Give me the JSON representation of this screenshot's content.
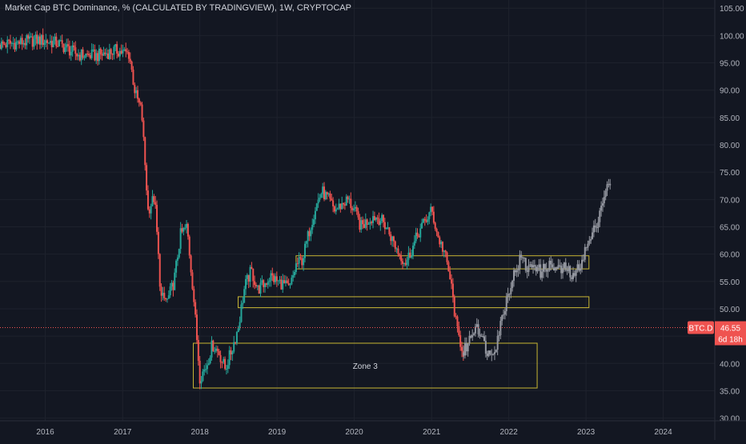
{
  "chart_data": {
    "type": "candlestick",
    "title": "Market Cap BTC Dominance, % (CALCULATED BY TRADINGVIEW), 1W, CRYPTOCAP",
    "xlabel": "",
    "ylabel": "",
    "grid": true,
    "xlim": [
      "2015-06-01",
      "2024-09-01"
    ],
    "ylim": [
      29.5,
      106.5
    ],
    "x_ticks": [
      "2016",
      "2017",
      "2018",
      "2019",
      "2020",
      "2021",
      "2022",
      "2023",
      "2024"
    ],
    "y_ticks": [
      "30.00",
      "35.00",
      "40.00",
      "45.00",
      "50.00",
      "55.00",
      "60.00",
      "65.00",
      "70.00",
      "75.00",
      "80.00",
      "85.00",
      "90.00",
      "95.00",
      "100.00",
      "105.00"
    ],
    "series": [
      {
        "name": "historical",
        "points": [
          [
            "2015-06-01",
            98.3
          ],
          [
            "2015-09-01",
            98.7
          ],
          [
            "2015-12-01",
            99.2
          ],
          [
            "2016-03-01",
            98.6
          ],
          [
            "2016-06-01",
            96.5
          ],
          [
            "2016-09-01",
            96.3
          ],
          [
            "2016-12-01",
            97.3
          ],
          [
            "2017-02-01",
            96.6
          ],
          [
            "2017-03-01",
            89.5
          ],
          [
            "2017-04-01",
            86.0
          ],
          [
            "2017-05-01",
            68.0
          ],
          [
            "2017-06-01",
            70.5
          ],
          [
            "2017-07-01",
            52.0
          ],
          [
            "2017-08-01",
            51.5
          ],
          [
            "2017-09-01",
            55.0
          ],
          [
            "2017-10-01",
            63.5
          ],
          [
            "2017-11-01",
            65.0
          ],
          [
            "2017-12-01",
            53.0
          ],
          [
            "2018-01-01",
            37.5
          ],
          [
            "2018-02-01",
            39.5
          ],
          [
            "2018-03-01",
            43.5
          ],
          [
            "2018-04-01",
            42.0
          ],
          [
            "2018-05-01",
            39.0
          ],
          [
            "2018-06-01",
            42.5
          ],
          [
            "2018-07-01",
            46.5
          ],
          [
            "2018-08-01",
            54.0
          ],
          [
            "2018-09-01",
            57.0
          ],
          [
            "2018-10-01",
            53.5
          ],
          [
            "2018-11-01",
            54.5
          ],
          [
            "2018-12-01",
            56.0
          ],
          [
            "2019-01-01",
            55.0
          ],
          [
            "2019-02-01",
            54.5
          ],
          [
            "2019-03-01",
            53.5
          ],
          [
            "2019-04-01",
            58.0
          ],
          [
            "2019-05-01",
            59.0
          ],
          [
            "2019-06-01",
            64.0
          ],
          [
            "2019-07-01",
            68.5
          ],
          [
            "2019-08-01",
            71.5
          ],
          [
            "2019-09-01",
            70.0
          ],
          [
            "2019-10-01",
            68.0
          ],
          [
            "2019-11-01",
            69.0
          ],
          [
            "2019-12-01",
            70.0
          ],
          [
            "2020-01-01",
            68.0
          ],
          [
            "2020-02-01",
            65.0
          ],
          [
            "2020-03-01",
            66.0
          ],
          [
            "2020-04-01",
            67.0
          ],
          [
            "2020-05-01",
            66.5
          ],
          [
            "2020-06-01",
            65.0
          ],
          [
            "2020-07-01",
            62.5
          ],
          [
            "2020-08-01",
            60.0
          ],
          [
            "2020-09-01",
            58.5
          ],
          [
            "2020-10-01",
            61.0
          ],
          [
            "2020-11-01",
            64.0
          ],
          [
            "2020-12-01",
            66.0
          ],
          [
            "2021-01-01",
            68.0
          ],
          [
            "2021-02-01",
            63.0
          ],
          [
            "2021-03-01",
            60.5
          ],
          [
            "2021-04-01",
            55.0
          ],
          [
            "2021-05-01",
            46.0
          ],
          [
            "2021-06-01",
            42.0
          ]
        ]
      },
      {
        "name": "projection",
        "points": [
          [
            "2021-06-01",
            42.0
          ],
          [
            "2021-07-01",
            44.5
          ],
          [
            "2021-08-01",
            47.5
          ],
          [
            "2021-09-01",
            44.0
          ],
          [
            "2021-10-01",
            41.5
          ],
          [
            "2021-11-01",
            43.5
          ],
          [
            "2021-12-01",
            48.5
          ],
          [
            "2022-01-01",
            53.5
          ],
          [
            "2022-02-01",
            57.0
          ],
          [
            "2022-03-01",
            59.5
          ],
          [
            "2022-04-01",
            57.0
          ],
          [
            "2022-05-01",
            58.5
          ],
          [
            "2022-06-01",
            56.5
          ],
          [
            "2022-07-01",
            58.0
          ],
          [
            "2022-08-01",
            57.5
          ],
          [
            "2022-09-01",
            57.0
          ],
          [
            "2022-10-01",
            57.5
          ],
          [
            "2022-11-01",
            55.5
          ],
          [
            "2022-12-01",
            58.0
          ],
          [
            "2023-01-01",
            61.0
          ],
          [
            "2023-02-01",
            63.5
          ],
          [
            "2023-03-01",
            67.0
          ],
          [
            "2023-04-01",
            71.5
          ],
          [
            "2023-05-01",
            73.0
          ]
        ]
      }
    ],
    "zones": [
      {
        "label": "",
        "x0": "2019-04-01",
        "x1": "2023-01-15",
        "y0": 57.3,
        "y1": 59.7
      },
      {
        "label": "",
        "x0": "2018-07-01",
        "x1": "2023-01-15",
        "y0": 50.2,
        "y1": 52.2
      },
      {
        "label": "Zone 3",
        "x0": "2017-12-01",
        "x1": "2022-05-15",
        "y0": 35.5,
        "y1": 43.7
      }
    ],
    "last_value": {
      "symbol": "BTC.D",
      "value": 46.55,
      "value_label": "46.55",
      "countdown": "6d 18h"
    },
    "colors": {
      "background": "#131722",
      "grid": "#1e222d",
      "up": "#26a69a",
      "down": "#ef5350",
      "projection": "#9598a1",
      "zone": "#c8b634",
      "price_line": "#ef5350",
      "text": "#d1d4dc",
      "axis_text": "#b2b5be"
    }
  }
}
